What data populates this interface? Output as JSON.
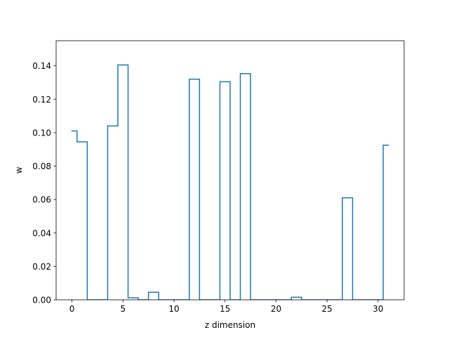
{
  "chart_data": {
    "type": "line",
    "drawstyle": "steps-mid",
    "xlabel": "z dimension",
    "ylabel": "w",
    "xlim": [
      -1.55,
      32.55
    ],
    "ylim": [
      0,
      0.155
    ],
    "xticks": [
      0,
      5,
      10,
      15,
      20,
      25,
      30
    ],
    "yticks": [
      0.0,
      0.02,
      0.04,
      0.06,
      0.08,
      0.1,
      0.12,
      0.14
    ],
    "xtick_labels": [
      "0",
      "5",
      "10",
      "15",
      "20",
      "25",
      "30"
    ],
    "ytick_labels": [
      "0.00",
      "0.02",
      "0.04",
      "0.06",
      "0.08",
      "0.10",
      "0.12",
      "0.14"
    ],
    "grid": false,
    "line_color": "#1f77b4",
    "series": [
      {
        "x": [
          0,
          1,
          2,
          3,
          4,
          5,
          6,
          7,
          8,
          9,
          10,
          11,
          12,
          13,
          14,
          15,
          16,
          17,
          18,
          19,
          20,
          21,
          22,
          23,
          24,
          25,
          26,
          27,
          28,
          29,
          30,
          31
        ],
        "values": [
          0.101,
          0.0945,
          0.0,
          0.0,
          0.104,
          0.1405,
          0.0012,
          0.0,
          0.0045,
          0.0,
          0.0,
          0.0,
          0.132,
          0.0,
          0.0,
          0.1305,
          0.0,
          0.1353,
          0.0,
          0.0,
          0.0,
          0.0,
          0.0015,
          0.0,
          0.0,
          0.0,
          0.0,
          0.061,
          0.0,
          0.0,
          0.0,
          0.0925
        ]
      }
    ]
  }
}
